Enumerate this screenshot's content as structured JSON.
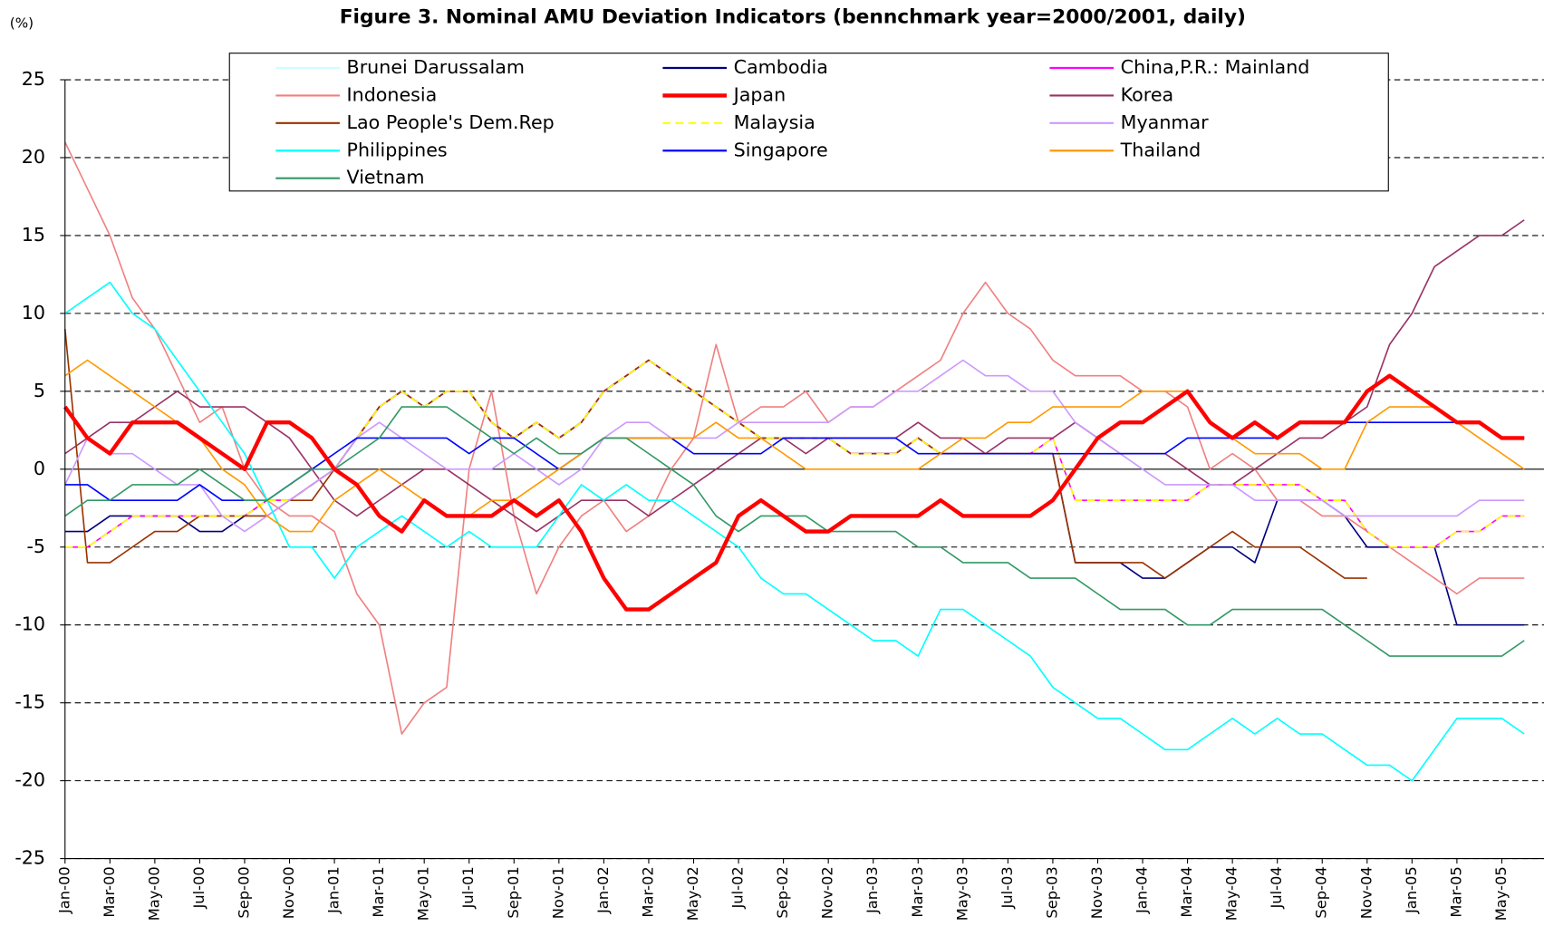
{
  "chart_data": {
    "type": "line",
    "title": "Figure 3. Nominal AMU Deviation Indicators (bennchmark year=2000/2001, daily)",
    "y_label": "(%)",
    "categories": [
      "Jan-00",
      null,
      "Mar-00",
      null,
      "May-00",
      null,
      "Jul-00",
      null,
      "Sep-00",
      null,
      "Nov-00",
      null,
      "Jan-01",
      null,
      "Mar-01",
      null,
      "May-01",
      null,
      "Jul-01",
      null,
      "Sep-01",
      null,
      "Nov-01",
      null,
      "Jan-02",
      null,
      "Mar-02",
      null,
      "May-02",
      null,
      "Jul-02",
      null,
      "Sep-02",
      null,
      "Nov-02",
      null,
      "Jan-03",
      null,
      "Mar-03",
      null,
      "May-03",
      null,
      "Jul-03",
      null,
      "Sep-03",
      null,
      "Nov-03",
      null,
      "Jan-04",
      null,
      "Mar-04",
      null,
      "May-04",
      null,
      "Jul-04",
      null,
      "Sep-04",
      null,
      "Nov-04",
      null,
      "Jan-05",
      null,
      "Mar-05",
      null,
      "May-05",
      null
    ],
    "ylim": [
      -25,
      25
    ],
    "yticks": [
      -25,
      -20,
      -15,
      -10,
      -5,
      0,
      5,
      10,
      15,
      20,
      25
    ],
    "grid": true,
    "series": [
      {
        "name": "Brunei Darussalam",
        "color": "#ccffff",
        "values": [
          -1,
          -1,
          -2,
          -2,
          -2,
          -2,
          -1,
          -2,
          -2,
          -2,
          -1,
          0,
          1,
          2,
          2,
          2,
          2,
          2,
          1,
          2,
          2,
          1,
          0,
          1,
          2,
          2,
          2,
          2,
          1,
          1,
          1,
          1,
          2,
          2,
          2,
          2,
          2,
          2,
          1,
          1,
          1,
          1,
          1,
          1,
          1,
          1,
          1,
          1,
          1,
          1,
          2,
          2,
          2,
          2,
          2,
          3,
          3,
          3,
          3,
          3,
          3,
          3,
          3,
          3,
          2,
          2
        ]
      },
      {
        "name": "Cambodia",
        "color": "#000080",
        "values": [
          -4,
          -4,
          -3,
          -3,
          -3,
          -3,
          -4,
          -4,
          -3,
          -2,
          -2,
          -1,
          0,
          2,
          4,
          5,
          4,
          5,
          5,
          3,
          2,
          3,
          2,
          3,
          5,
          6,
          7,
          6,
          5,
          4,
          3,
          2,
          2,
          2,
          2,
          1,
          1,
          1,
          2,
          1,
          1,
          1,
          1,
          1,
          1,
          -6,
          -6,
          -6,
          -7,
          -7,
          -6,
          -5,
          -5,
          -6,
          -2,
          -2,
          -2,
          -3,
          -5,
          -5,
          -5,
          -5,
          -10,
          -10,
          -10,
          -10
        ]
      },
      {
        "name": "China,P.R.: Mainland",
        "color": "#ff00ff",
        "values": [
          -5,
          -5,
          -4,
          -3,
          -3,
          -3,
          -3,
          -3,
          -3,
          -2,
          -2,
          -1,
          0,
          2,
          4,
          5,
          4,
          5,
          5,
          3,
          2,
          3,
          2,
          3,
          5,
          6,
          7,
          6,
          5,
          4,
          3,
          2,
          2,
          2,
          2,
          1,
          1,
          1,
          2,
          1,
          1,
          1,
          1,
          1,
          2,
          -2,
          -2,
          -2,
          -2,
          -2,
          -2,
          -1,
          -1,
          -1,
          -1,
          -1,
          -2,
          -2,
          -4,
          -5,
          -5,
          -5,
          -4,
          -4,
          -3,
          -3
        ]
      },
      {
        "name": "Indonesia",
        "color": "#f08080",
        "values": [
          21,
          18,
          15,
          11,
          9,
          6,
          3,
          4,
          0,
          -2,
          -3,
          -3,
          -4,
          -8,
          -10,
          -17,
          -15,
          -14,
          0,
          5,
          -3,
          -8,
          -5,
          -3,
          -2,
          -4,
          -3,
          0,
          2,
          8,
          3,
          4,
          4,
          5,
          3,
          4,
          4,
          5,
          6,
          7,
          10,
          12,
          10,
          9,
          7,
          6,
          6,
          6,
          5,
          5,
          4,
          0,
          1,
          0,
          -2,
          -2,
          -3,
          -3,
          -4,
          -5,
          -6,
          -7,
          -8,
          -7,
          -7,
          -7
        ]
      },
      {
        "name": "Japan",
        "color": "#ff0000",
        "width": 4,
        "values": [
          4,
          2,
          1,
          3,
          3,
          3,
          2,
          1,
          0,
          3,
          3,
          2,
          0,
          -1,
          -3,
          -4,
          -2,
          -3,
          -3,
          -3,
          -2,
          -3,
          -2,
          -4,
          -7,
          -9,
          -9,
          -8,
          -7,
          -6,
          -3,
          -2,
          -3,
          -4,
          -4,
          -3,
          -3,
          -3,
          -3,
          -2,
          -3,
          -3,
          -3,
          -3,
          -2,
          0,
          2,
          3,
          3,
          4,
          5,
          3,
          2,
          3,
          2,
          3,
          3,
          3,
          5,
          6,
          5,
          4,
          3,
          3,
          2,
          2
        ]
      },
      {
        "name": "Korea",
        "color": "#993366",
        "values": [
          1,
          2,
          3,
          3,
          4,
          5,
          4,
          4,
          4,
          3,
          2,
          0,
          -2,
          -3,
          -2,
          -1,
          0,
          0,
          -1,
          -2,
          -3,
          -4,
          -3,
          -2,
          -2,
          -2,
          -3,
          -2,
          -1,
          0,
          1,
          2,
          2,
          1,
          2,
          2,
          2,
          2,
          3,
          2,
          2,
          1,
          2,
          2,
          2,
          3,
          2,
          1,
          1,
          1,
          0,
          -1,
          -1,
          0,
          1,
          2,
          2,
          3,
          4,
          8,
          10,
          13,
          14,
          15,
          15,
          16
        ]
      },
      {
        "name": "Lao People's Dem.Rep",
        "color": "#993300",
        "values": [
          9,
          -6,
          -6,
          -5,
          -4,
          -4,
          -3,
          -3,
          -3,
          -3,
          -2,
          -2,
          0,
          2,
          4,
          5,
          4,
          5,
          5,
          3,
          2,
          3,
          2,
          3,
          5,
          6,
          7,
          6,
          5,
          4,
          3,
          2,
          2,
          2,
          2,
          1,
          1,
          1,
          2,
          1,
          1,
          1,
          1,
          1,
          1,
          -6,
          -6,
          -6,
          -6,
          -7,
          -6,
          -5,
          -4,
          -5,
          -5,
          -5,
          -6,
          -7,
          -7,
          null,
          null,
          null,
          null,
          null,
          null,
          null
        ]
      },
      {
        "name": "Malaysia",
        "color": "#ffff00",
        "dash": true,
        "values": [
          -5,
          -5,
          -4,
          -3,
          -3,
          -3,
          -3,
          -3,
          -3,
          -2,
          -2,
          -1,
          0,
          2,
          4,
          5,
          4,
          5,
          5,
          3,
          2,
          3,
          2,
          3,
          5,
          6,
          7,
          6,
          5,
          4,
          3,
          2,
          2,
          2,
          2,
          1,
          1,
          1,
          2,
          1,
          1,
          1,
          1,
          1,
          2,
          -2,
          -2,
          -2,
          -2,
          -2,
          -2,
          -1,
          -1,
          -1,
          -1,
          -1,
          -2,
          -2,
          -4,
          -5,
          -5,
          -5,
          -4,
          -4,
          -3,
          -3
        ]
      },
      {
        "name": "Myanmar",
        "color": "#cc99ff",
        "values": [
          -1,
          2,
          1,
          1,
          0,
          -1,
          -1,
          -3,
          -4,
          -3,
          -2,
          -1,
          0,
          2,
          3,
          2,
          1,
          0,
          0,
          0,
          1,
          0,
          -1,
          0,
          2,
          3,
          3,
          2,
          2,
          2,
          3,
          3,
          3,
          3,
          3,
          4,
          4,
          5,
          5,
          6,
          7,
          6,
          6,
          5,
          5,
          3,
          2,
          1,
          0,
          -1,
          -1,
          -1,
          -1,
          -2,
          -2,
          -2,
          -2,
          -3,
          -3,
          -3,
          -3,
          -3,
          -3,
          -2,
          -2,
          -2
        ]
      },
      {
        "name": "Philippines",
        "color": "#00ffff",
        "values": [
          10,
          11,
          12,
          10,
          9,
          7,
          5,
          3,
          1,
          -2,
          -5,
          -5,
          -7,
          -5,
          -4,
          -3,
          -4,
          -5,
          -4,
          -5,
          -5,
          -5,
          -3,
          -1,
          -2,
          -1,
          -2,
          -2,
          -3,
          -4,
          -5,
          -7,
          -8,
          -8,
          -9,
          -10,
          -11,
          -11,
          -12,
          -9,
          -9,
          -10,
          -11,
          -12,
          -14,
          -15,
          -16,
          -16,
          -17,
          -18,
          -18,
          -17,
          -16,
          -17,
          -16,
          -17,
          -17,
          -18,
          -19,
          -19,
          -20,
          -18,
          -16,
          -16,
          -16,
          -17
        ]
      },
      {
        "name": "Singapore",
        "color": "#0000ff",
        "values": [
          -1,
          -1,
          -2,
          -2,
          -2,
          -2,
          -1,
          -2,
          -2,
          -2,
          -1,
          0,
          1,
          2,
          2,
          2,
          2,
          2,
          1,
          2,
          2,
          1,
          0,
          1,
          2,
          2,
          2,
          2,
          1,
          1,
          1,
          1,
          2,
          2,
          2,
          2,
          2,
          2,
          1,
          1,
          1,
          1,
          1,
          1,
          1,
          1,
          1,
          1,
          1,
          1,
          2,
          2,
          2,
          2,
          2,
          3,
          3,
          3,
          3,
          3,
          3,
          3,
          3,
          3,
          2,
          2
        ]
      },
      {
        "name": "Thailand",
        "color": "#ff9900",
        "values": [
          6,
          7,
          6,
          5,
          4,
          3,
          2,
          0,
          -1,
          -3,
          -4,
          -4,
          -2,
          -1,
          0,
          -1,
          -2,
          -3,
          -3,
          -2,
          -2,
          -1,
          0,
          1,
          2,
          2,
          2,
          2,
          2,
          3,
          2,
          2,
          1,
          0,
          0,
          0,
          0,
          0,
          0,
          1,
          2,
          2,
          3,
          3,
          4,
          4,
          4,
          4,
          5,
          5,
          5,
          3,
          2,
          1,
          1,
          1,
          0,
          0,
          3,
          4,
          4,
          4,
          3,
          2,
          1,
          0
        ]
      },
      {
        "name": "Vietnam",
        "color": "#339966",
        "values": [
          -3,
          -2,
          -2,
          -1,
          -1,
          -1,
          0,
          -1,
          -2,
          -2,
          -1,
          0,
          0,
          1,
          2,
          4,
          4,
          4,
          3,
          2,
          1,
          2,
          1,
          1,
          2,
          2,
          1,
          0,
          -1,
          -3,
          -4,
          -3,
          -3,
          -3,
          -4,
          -4,
          -4,
          -4,
          -5,
          -5,
          -6,
          -6,
          -6,
          -7,
          -7,
          -7,
          -8,
          -9,
          -9,
          -9,
          -10,
          -10,
          -9,
          -9,
          -9,
          -9,
          -9,
          -10,
          -11,
          -12,
          -12,
          -12,
          -12,
          -12,
          -12,
          -11
        ]
      }
    ]
  }
}
